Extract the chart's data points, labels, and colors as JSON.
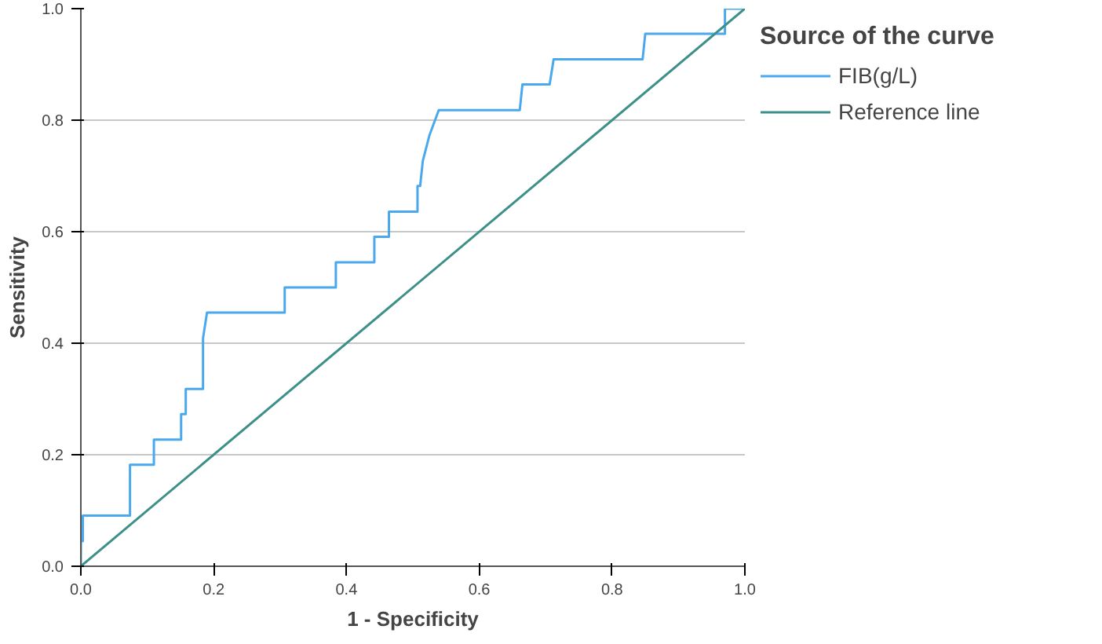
{
  "chart_data": {
    "type": "line",
    "xlabel": "1 - Specificity",
    "ylabel": "Sensitivity",
    "legend_title": "Source of the curve",
    "legend": "right",
    "grid": "y",
    "xlim": [
      0,
      1
    ],
    "ylim": [
      0,
      1
    ],
    "xticks": [
      {
        "value": 0,
        "label": "0.0"
      },
      {
        "value": 0.2,
        "label": "0.2"
      },
      {
        "value": 0.4,
        "label": "0.4"
      },
      {
        "value": 0.6,
        "label": "0.6"
      },
      {
        "value": 0.8,
        "label": "0.8"
      },
      {
        "value": 1,
        "label": "1.0"
      }
    ],
    "yticks": [
      {
        "value": 0,
        "label": "0.0"
      },
      {
        "value": 0.2,
        "label": "0.2"
      },
      {
        "value": 0.4,
        "label": "0.4"
      },
      {
        "value": 0.6,
        "label": "0.6"
      },
      {
        "value": 0.8,
        "label": "0.8"
      },
      {
        "value": 1,
        "label": "1.0"
      }
    ],
    "series": [
      {
        "name": "FIB(g/L)",
        "color": "#4aa8ec",
        "x": [
          0,
          0,
          0.003,
          0.003,
          0.074,
          0.074,
          0.11,
          0.11,
          0.151,
          0.151,
          0.158,
          0.158,
          0.184,
          0.184,
          0.19,
          0.307,
          0.307,
          0.384,
          0.384,
          0.442,
          0.442,
          0.452,
          0.464,
          0.464,
          0.507,
          0.507,
          0.511,
          0.515,
          0.525,
          0.539,
          0.661,
          0.665,
          0.706,
          0.712,
          0.846,
          0.85,
          0.97,
          0.97,
          1
        ],
        "values": [
          0,
          0.045,
          0.045,
          0.091,
          0.091,
          0.182,
          0.182,
          0.227,
          0.227,
          0.273,
          0.273,
          0.318,
          0.318,
          0.409,
          0.455,
          0.455,
          0.5,
          0.5,
          0.545,
          0.545,
          0.591,
          0.591,
          0.591,
          0.636,
          0.636,
          0.682,
          0.682,
          0.727,
          0.773,
          0.818,
          0.818,
          0.864,
          0.864,
          0.909,
          0.909,
          0.955,
          0.955,
          1,
          1
        ]
      },
      {
        "name": "Reference line",
        "color": "#3d9089",
        "x": [
          0,
          1
        ],
        "values": [
          0,
          1
        ]
      }
    ]
  }
}
